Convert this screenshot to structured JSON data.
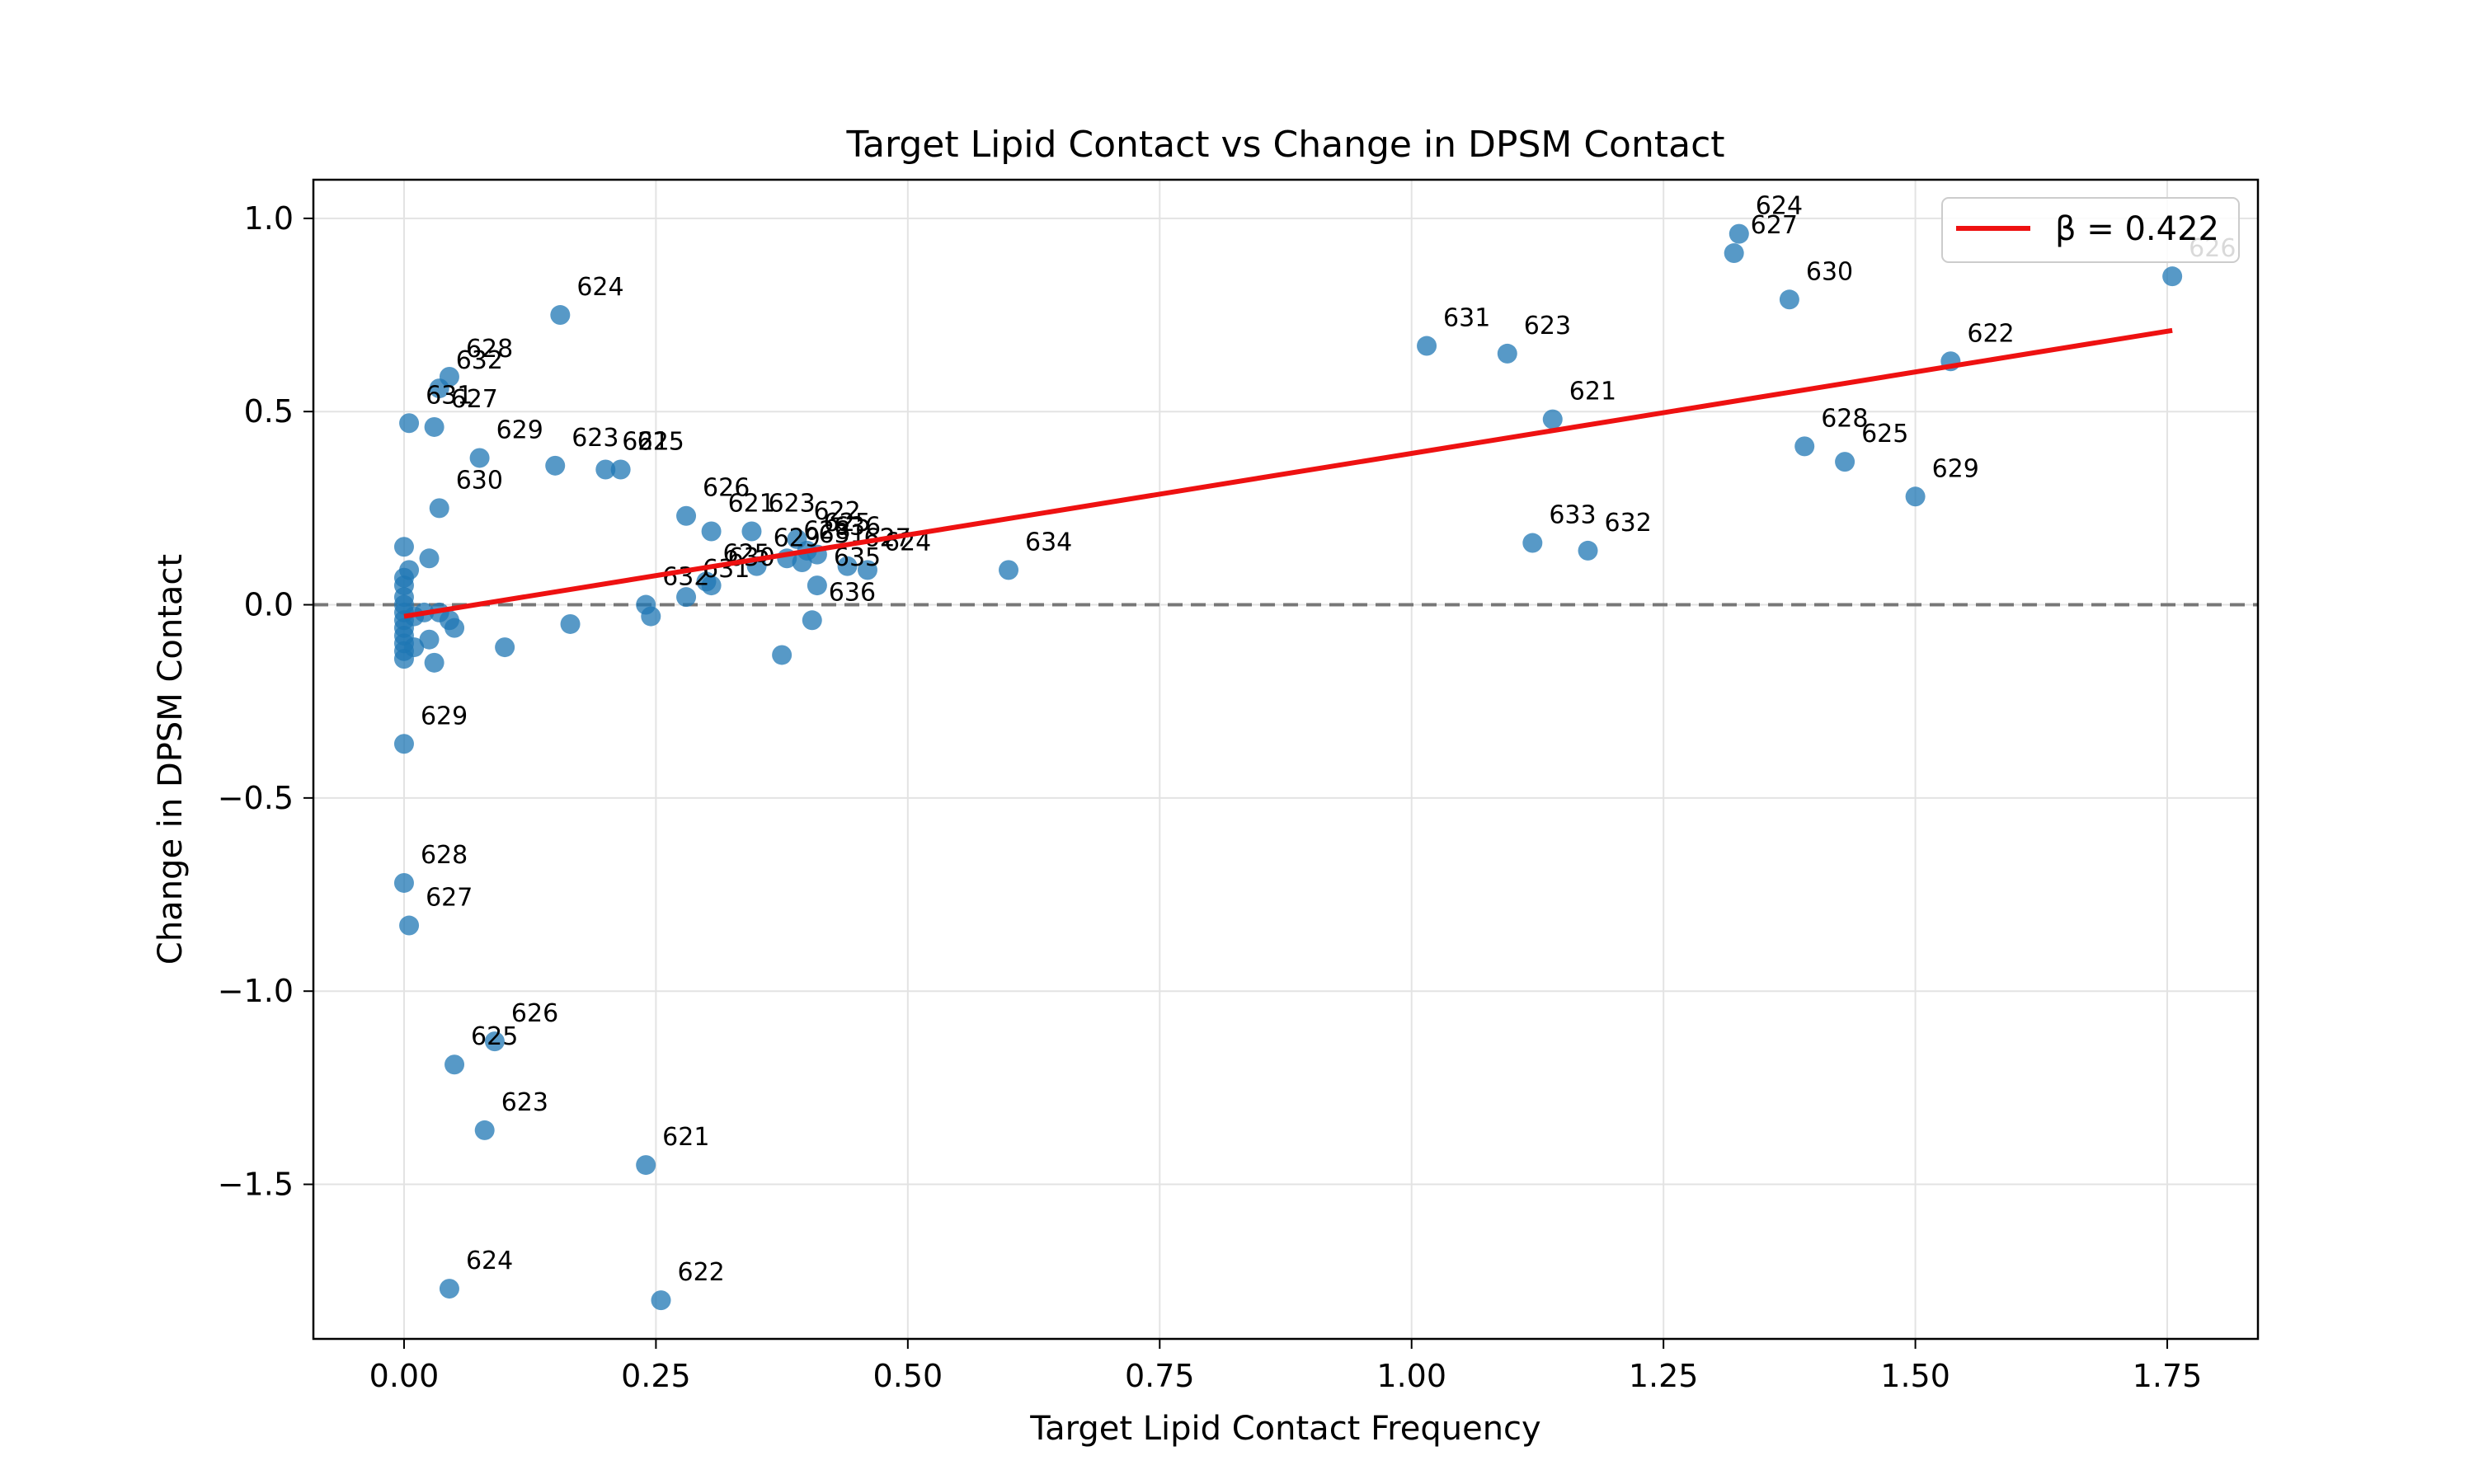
{
  "chart_data": {
    "type": "scatter",
    "title": "Target Lipid Contact vs Change in DPSM Contact",
    "xlabel": "Target Lipid Contact Frequency",
    "ylabel": "Change in DPSM Contact",
    "xlim": [
      -0.09,
      1.84
    ],
    "ylim": [
      -1.9,
      1.1
    ],
    "xticks": [
      0.0,
      0.25,
      0.5,
      0.75,
      1.0,
      1.25,
      1.5,
      1.75
    ],
    "xtick_labels": [
      "0.00",
      "0.25",
      "0.50",
      "0.75",
      "1.00",
      "1.25",
      "1.50",
      "1.75"
    ],
    "yticks": [
      1.0,
      0.5,
      0.0,
      -0.5,
      -1.0,
      -1.5
    ],
    "ytick_labels": [
      "1.0",
      "0.5",
      "0.0",
      "−0.5",
      "−1.0",
      "−1.5"
    ],
    "grid": true,
    "legend": {
      "position": "top-right",
      "entries": [
        {
          "label": "β = 0.422",
          "color": "#ee1111"
        }
      ]
    },
    "colors": {
      "point": "#1f77b4",
      "fit": "#ee1111",
      "zero_line": "#777777",
      "grid": "#e3e3e3"
    },
    "reference_line": {
      "y": 0.0,
      "style": "dashed"
    },
    "fit_line": {
      "x": [
        0.0,
        1.755
      ],
      "y": [
        -0.03,
        0.71
      ]
    },
    "points": [
      {
        "x": 0.0,
        "y": 0.15,
        "label": ""
      },
      {
        "x": 0.0,
        "y": 0.07,
        "label": ""
      },
      {
        "x": 0.0,
        "y": 0.05,
        "label": ""
      },
      {
        "x": 0.0,
        "y": 0.02,
        "label": ""
      },
      {
        "x": 0.0,
        "y": 0.0,
        "label": ""
      },
      {
        "x": 0.0,
        "y": -0.02,
        "label": ""
      },
      {
        "x": 0.0,
        "y": -0.04,
        "label": ""
      },
      {
        "x": 0.0,
        "y": -0.06,
        "label": ""
      },
      {
        "x": 0.0,
        "y": -0.08,
        "label": ""
      },
      {
        "x": 0.0,
        "y": -0.1,
        "label": ""
      },
      {
        "x": 0.0,
        "y": -0.12,
        "label": ""
      },
      {
        "x": 0.0,
        "y": -0.14,
        "label": ""
      },
      {
        "x": 0.005,
        "y": 0.09,
        "label": ""
      },
      {
        "x": 0.01,
        "y": -0.03,
        "label": ""
      },
      {
        "x": 0.01,
        "y": -0.11,
        "label": ""
      },
      {
        "x": 0.02,
        "y": -0.02,
        "label": ""
      },
      {
        "x": 0.025,
        "y": 0.12,
        "label": ""
      },
      {
        "x": 0.025,
        "y": -0.09,
        "label": ""
      },
      {
        "x": 0.03,
        "y": -0.15,
        "label": ""
      },
      {
        "x": 0.035,
        "y": -0.02,
        "label": ""
      },
      {
        "x": 0.045,
        "y": -0.04,
        "label": ""
      },
      {
        "x": 0.05,
        "y": -0.06,
        "label": ""
      },
      {
        "x": 0.1,
        "y": -0.11,
        "label": ""
      },
      {
        "x": 0.165,
        "y": -0.05,
        "label": ""
      },
      {
        "x": 0.0,
        "y": -0.36,
        "label": "629"
      },
      {
        "x": 0.0,
        "y": -0.72,
        "label": "628"
      },
      {
        "x": 0.005,
        "y": -0.83,
        "label": "627"
      },
      {
        "x": 0.09,
        "y": -1.13,
        "label": "626"
      },
      {
        "x": 0.05,
        "y": -1.19,
        "label": "625"
      },
      {
        "x": 0.08,
        "y": -1.36,
        "label": "623"
      },
      {
        "x": 0.24,
        "y": -1.45,
        "label": "621"
      },
      {
        "x": 0.045,
        "y": -1.77,
        "label": "624"
      },
      {
        "x": 0.255,
        "y": -1.8,
        "label": "622"
      },
      {
        "x": 0.155,
        "y": 0.75,
        "label": "624"
      },
      {
        "x": 0.045,
        "y": 0.59,
        "label": "628"
      },
      {
        "x": 0.035,
        "y": 0.56,
        "label": "632"
      },
      {
        "x": 0.005,
        "y": 0.47,
        "label": "631"
      },
      {
        "x": 0.03,
        "y": 0.46,
        "label": "627"
      },
      {
        "x": 0.075,
        "y": 0.38,
        "label": "629"
      },
      {
        "x": 0.15,
        "y": 0.36,
        "label": "623"
      },
      {
        "x": 0.2,
        "y": 0.35,
        "label": "621"
      },
      {
        "x": 0.215,
        "y": 0.35,
        "label": "625"
      },
      {
        "x": 0.035,
        "y": 0.25,
        "label": "630"
      },
      {
        "x": 0.28,
        "y": 0.23,
        "label": "626"
      },
      {
        "x": 0.305,
        "y": 0.19,
        "label": "621"
      },
      {
        "x": 0.345,
        "y": 0.19,
        "label": "623"
      },
      {
        "x": 0.39,
        "y": 0.17,
        "label": "622"
      },
      {
        "x": 0.4,
        "y": 0.14,
        "label": "625"
      },
      {
        "x": 0.38,
        "y": 0.12,
        "label": "628"
      },
      {
        "x": 0.395,
        "y": 0.11,
        "label": "631"
      },
      {
        "x": 0.41,
        "y": 0.13,
        "label": "636"
      },
      {
        "x": 0.46,
        "y": 0.09,
        "label": "624"
      },
      {
        "x": 0.44,
        "y": 0.1,
        "label": "627"
      },
      {
        "x": 0.3,
        "y": 0.06,
        "label": "625"
      },
      {
        "x": 0.35,
        "y": 0.1,
        "label": "629"
      },
      {
        "x": 0.305,
        "y": 0.05,
        "label": "630"
      },
      {
        "x": 0.28,
        "y": 0.02,
        "label": "631"
      },
      {
        "x": 0.24,
        "y": 0.0,
        "label": "632"
      },
      {
        "x": 0.245,
        "y": -0.03,
        "label": ""
      },
      {
        "x": 0.41,
        "y": 0.05,
        "label": "635"
      },
      {
        "x": 0.405,
        "y": -0.04,
        "label": "636"
      },
      {
        "x": 0.375,
        "y": -0.13,
        "label": ""
      },
      {
        "x": 0.6,
        "y": 0.09,
        "label": "634"
      },
      {
        "x": 1.015,
        "y": 0.67,
        "label": "631"
      },
      {
        "x": 1.095,
        "y": 0.65,
        "label": "623"
      },
      {
        "x": 1.14,
        "y": 0.48,
        "label": "621"
      },
      {
        "x": 1.12,
        "y": 0.16,
        "label": "633"
      },
      {
        "x": 1.175,
        "y": 0.14,
        "label": "632"
      },
      {
        "x": 1.325,
        "y": 0.96,
        "label": "624"
      },
      {
        "x": 1.32,
        "y": 0.91,
        "label": "627"
      },
      {
        "x": 1.375,
        "y": 0.79,
        "label": "630"
      },
      {
        "x": 1.39,
        "y": 0.41,
        "label": "628"
      },
      {
        "x": 1.43,
        "y": 0.37,
        "label": "625"
      },
      {
        "x": 1.5,
        "y": 0.28,
        "label": "629"
      },
      {
        "x": 1.535,
        "y": 0.63,
        "label": "622"
      },
      {
        "x": 1.755,
        "y": 0.85,
        "label": "626"
      }
    ]
  }
}
